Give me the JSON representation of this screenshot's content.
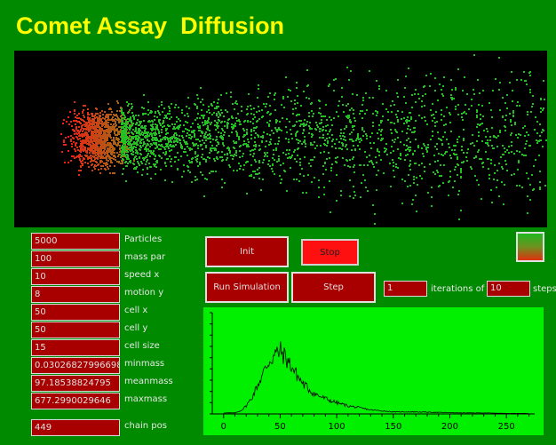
{
  "title": "Comet Assay  Diffusion",
  "params": [
    {
      "value": "5000",
      "label": "Particles"
    },
    {
      "value": "100",
      "label": "mass par"
    },
    {
      "value": "10",
      "label": "speed x"
    },
    {
      "value": "8",
      "label": "motion y"
    },
    {
      "value": "50",
      "label": "cell x"
    },
    {
      "value": "50",
      "label": "cell y"
    },
    {
      "value": "15",
      "label": "cell size"
    },
    {
      "value": "0.03026827996698",
      "label": "minmass"
    },
    {
      "value": "97.18538824795",
      "label": "meanmass"
    },
    {
      "value": "677.2990029646",
      "label": "maxmass"
    }
  ],
  "chain_pos": {
    "value": "449",
    "label": "chain pos"
  },
  "buttons": {
    "init": "Init",
    "stop": "Stop",
    "run": "Run Simulation",
    "step": "Step"
  },
  "iterations": {
    "value": "1",
    "label": "iterations of",
    "steps_value": "10",
    "steps_label": "steps"
  },
  "colors": {
    "background": "#008a00",
    "field": "#a80000",
    "active_button": "#ff1010",
    "plot_bg": "#00f000",
    "title": "#ffff00"
  },
  "chart_data": {
    "type": "line",
    "title": "",
    "xlabel": "",
    "ylabel": "",
    "xlim": [
      -10,
      275
    ],
    "ylim": [
      0,
      100
    ],
    "xticks": [
      "0",
      "50",
      "100",
      "150",
      "200",
      "250"
    ],
    "grid": false,
    "series": [
      {
        "x": [
          0,
          10,
          15,
          20,
          25,
          30,
          35,
          40,
          45,
          50,
          52,
          55,
          60,
          65,
          70,
          75,
          80,
          90,
          100,
          110,
          120,
          130,
          140,
          150,
          170,
          190,
          210,
          230,
          250,
          270
        ],
        "values": [
          1,
          1,
          3,
          8,
          16,
          28,
          40,
          52,
          58,
          62,
          60,
          55,
          47,
          38,
          30,
          25,
          20,
          15,
          11,
          8,
          6,
          4,
          3,
          2,
          2,
          1.5,
          1,
          1,
          0.5,
          0.5
        ]
      }
    ]
  }
}
